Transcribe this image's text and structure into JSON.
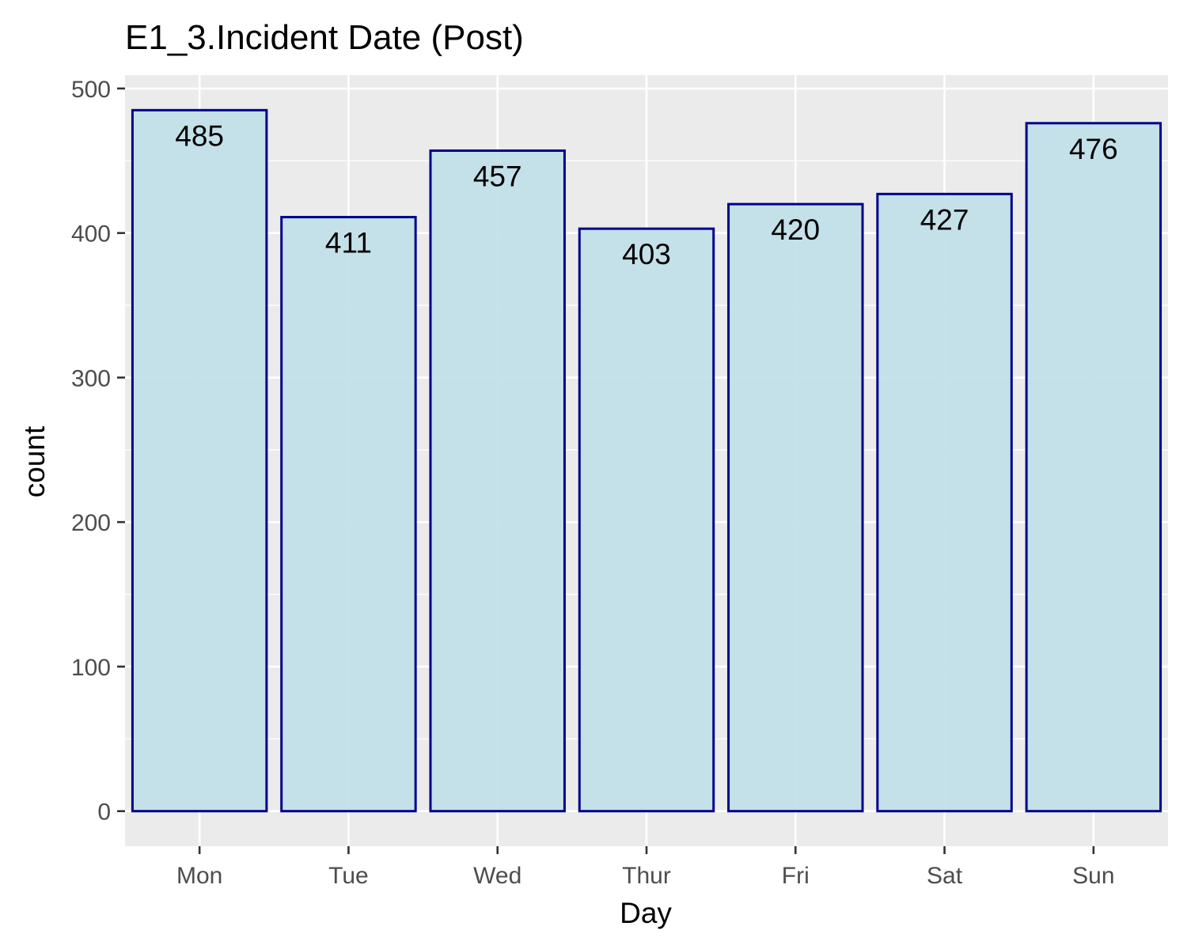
{
  "chart_data": {
    "type": "bar",
    "title": "E1_3.Incident Date (Post)",
    "xlabel": "Day",
    "ylabel": "count",
    "categories": [
      "Mon",
      "Tue",
      "Wed",
      "Thur",
      "Fri",
      "Sat",
      "Sun"
    ],
    "values": [
      485,
      411,
      457,
      403,
      420,
      427,
      476
    ],
    "data_labels": [
      "485",
      "411",
      "457",
      "403",
      "420",
      "427",
      "476"
    ],
    "ylim": [
      -24.25,
      509.25
    ],
    "yticks": [
      0,
      100,
      200,
      300,
      400,
      500
    ],
    "ytick_labels": [
      "0",
      "100",
      "200",
      "300",
      "400",
      "500"
    ],
    "grid": true,
    "legend": "none",
    "colors": {
      "bar_fill": "#c2dfe9",
      "bar_stroke": "#00008b",
      "panel_background": "#ebebeb",
      "grid": "#ffffff",
      "tick_text": "#4d4d4d",
      "axis_tick": "#333333",
      "text": "#000000"
    }
  }
}
